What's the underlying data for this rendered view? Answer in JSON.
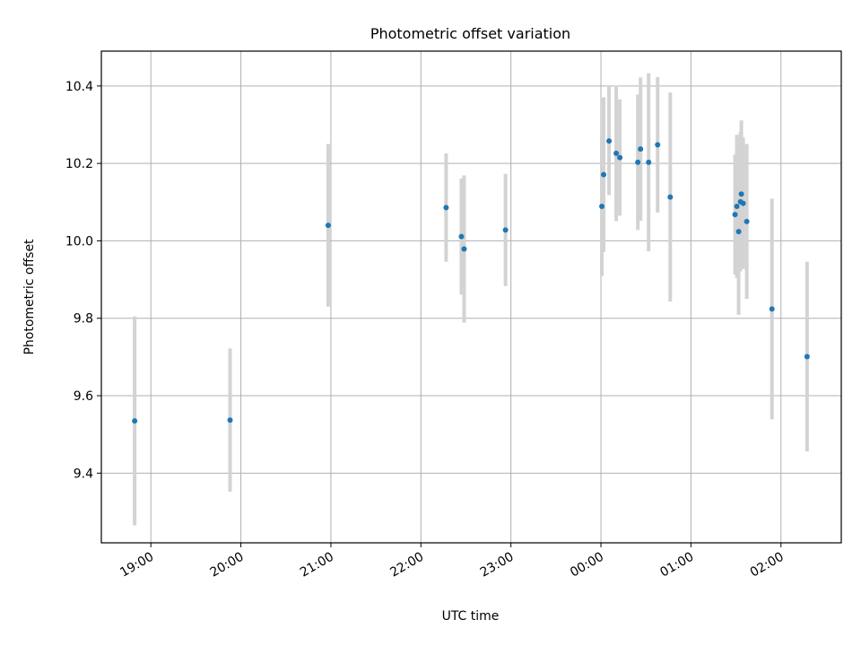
{
  "chart_data": {
    "type": "scatter",
    "title": "Photometric offset variation",
    "xlabel": "UTC time",
    "ylabel": "Photometric offset",
    "x_unit": "hours (continuing past 24:00 for after midnight)",
    "xlim": [
      18.45,
      26.67
    ],
    "ylim": [
      9.22,
      10.49
    ],
    "xticks": [
      {
        "value": 19,
        "label": "19:00"
      },
      {
        "value": 20,
        "label": "20:00"
      },
      {
        "value": 21,
        "label": "21:00"
      },
      {
        "value": 22,
        "label": "22:00"
      },
      {
        "value": 23,
        "label": "23:00"
      },
      {
        "value": 24,
        "label": "00:00"
      },
      {
        "value": 25,
        "label": "01:00"
      },
      {
        "value": 26,
        "label": "02:00"
      }
    ],
    "yticks": [
      {
        "value": 9.4,
        "label": "9.4"
      },
      {
        "value": 9.6,
        "label": "9.6"
      },
      {
        "value": 9.8,
        "label": "9.8"
      },
      {
        "value": 10.0,
        "label": "10.0"
      },
      {
        "value": 10.2,
        "label": "10.2"
      },
      {
        "value": 10.4,
        "label": "10.4"
      }
    ],
    "grid": true,
    "marker_color": "#1f77b4",
    "errorbar_color": "#d3d3d3",
    "points": [
      {
        "x": 18.82,
        "y": 9.535,
        "low": 9.265,
        "high": 9.805
      },
      {
        "x": 19.88,
        "y": 9.537,
        "low": 9.352,
        "high": 9.722
      },
      {
        "x": 20.97,
        "y": 10.04,
        "low": 9.83,
        "high": 10.25
      },
      {
        "x": 22.28,
        "y": 10.086,
        "low": 9.946,
        "high": 10.226
      },
      {
        "x": 22.45,
        "y": 10.011,
        "low": 9.861,
        "high": 10.161
      },
      {
        "x": 22.48,
        "y": 9.979,
        "low": 9.789,
        "high": 10.169
      },
      {
        "x": 22.94,
        "y": 10.028,
        "low": 9.883,
        "high": 10.173
      },
      {
        "x": 24.01,
        "y": 10.089,
        "low": 9.909,
        "high": 10.269
      },
      {
        "x": 24.03,
        "y": 10.171,
        "low": 9.971,
        "high": 10.371
      },
      {
        "x": 24.09,
        "y": 10.258,
        "low": 10.118,
        "high": 10.398
      },
      {
        "x": 24.17,
        "y": 10.226,
        "low": 10.051,
        "high": 10.401
      },
      {
        "x": 24.21,
        "y": 10.215,
        "low": 10.065,
        "high": 10.365
      },
      {
        "x": 24.41,
        "y": 10.203,
        "low": 10.028,
        "high": 10.378
      },
      {
        "x": 24.44,
        "y": 10.237,
        "low": 10.052,
        "high": 10.422
      },
      {
        "x": 24.53,
        "y": 10.203,
        "low": 9.973,
        "high": 10.433
      },
      {
        "x": 24.63,
        "y": 10.248,
        "low": 10.073,
        "high": 10.423
      },
      {
        "x": 24.77,
        "y": 10.113,
        "low": 9.843,
        "high": 10.383
      },
      {
        "x": 25.49,
        "y": 10.068,
        "low": 9.913,
        "high": 10.223
      },
      {
        "x": 25.51,
        "y": 10.089,
        "low": 9.904,
        "high": 10.274
      },
      {
        "x": 25.53,
        "y": 10.024,
        "low": 9.809,
        "high": 10.239
      },
      {
        "x": 25.55,
        "y": 10.101,
        "low": 9.921,
        "high": 10.281
      },
      {
        "x": 25.56,
        "y": 10.121,
        "low": 9.931,
        "high": 10.311
      },
      {
        "x": 25.58,
        "y": 10.097,
        "low": 9.927,
        "high": 10.267
      },
      {
        "x": 25.62,
        "y": 10.05,
        "low": 9.85,
        "high": 10.25
      },
      {
        "x": 25.9,
        "y": 9.824,
        "low": 9.539,
        "high": 10.109
      },
      {
        "x": 26.29,
        "y": 9.701,
        "low": 9.456,
        "high": 9.946
      }
    ]
  }
}
